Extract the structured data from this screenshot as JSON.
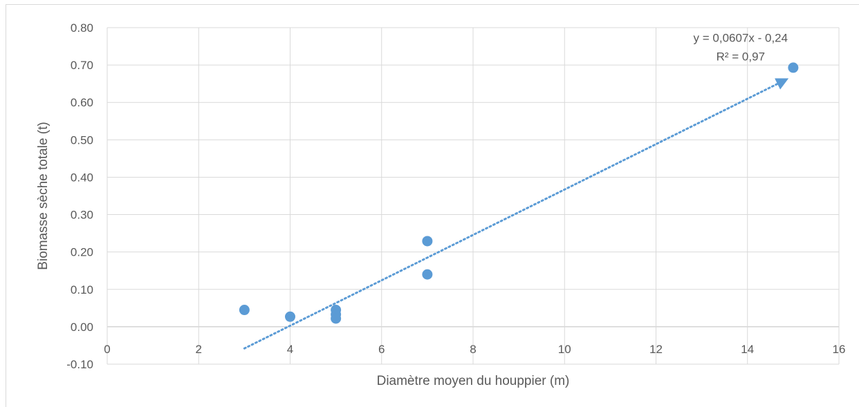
{
  "chart_data": {
    "type": "scatter",
    "title": "",
    "xlabel": "Diamètre moyen du houppier (m)",
    "ylabel": "Biomasse sèche totale (t)",
    "xlim": [
      0,
      16
    ],
    "ylim": [
      -0.1,
      0.8
    ],
    "x_ticks": [
      0,
      2,
      4,
      6,
      8,
      10,
      12,
      14,
      16
    ],
    "y_ticks": [
      -0.1,
      0.0,
      0.1,
      0.2,
      0.3,
      0.4,
      0.5,
      0.6,
      0.7,
      0.8
    ],
    "x_tick_labels": [
      "0",
      "2",
      "4",
      "6",
      "8",
      "10",
      "12",
      "14",
      "16"
    ],
    "y_tick_labels": [
      "-0.10",
      "0.00",
      "0.10",
      "0.20",
      "0.30",
      "0.40",
      "0.50",
      "0.60",
      "0.70",
      "0.80"
    ],
    "grid": true,
    "series": [
      {
        "points": [
          {
            "x": 3,
            "y": 0.045
          },
          {
            "x": 4,
            "y": 0.027
          },
          {
            "x": 5,
            "y": 0.045
          },
          {
            "x": 5,
            "y": 0.033
          },
          {
            "x": 5,
            "y": 0.022
          },
          {
            "x": 7,
            "y": 0.229
          },
          {
            "x": 7,
            "y": 0.14
          },
          {
            "x": 15,
            "y": 0.693
          }
        ],
        "color": "#5b9bd5"
      }
    ],
    "trendline": {
      "type": "linear",
      "slope": 0.0607,
      "intercept": -0.24,
      "x_range": [
        3,
        15
      ],
      "style": "dotted",
      "color": "#5b9bd5",
      "equation_label": "y = 0,0607x - 0,24",
      "r2_label": "R² = 0,97"
    }
  }
}
